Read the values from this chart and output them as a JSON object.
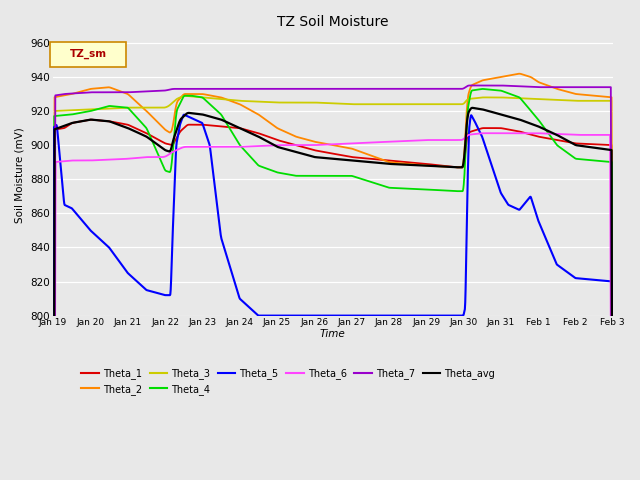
{
  "title": "TZ Soil Moisture",
  "xlabel": "Time",
  "ylabel": "Soil Moisture (mV)",
  "ylim": [
    800,
    965
  ],
  "yticks": [
    800,
    820,
    840,
    860,
    880,
    900,
    920,
    940,
    960
  ],
  "bg_color": "#e8e8e8",
  "legend_label": "TZ_sm",
  "series_colors": {
    "Theta_1": "#dd0000",
    "Theta_2": "#ff8800",
    "Theta_3": "#cccc00",
    "Theta_4": "#00dd00",
    "Theta_5": "#0000ff",
    "Theta_6": "#ff44ff",
    "Theta_7": "#9900cc",
    "Theta_avg": "#000000"
  },
  "tick_labels": [
    "Jan 19",
    "Jan 20",
    "Jan 21",
    "Jan 22",
    "Jan 23",
    "Jan 24",
    "Jan 25",
    "Jan 26",
    "Jan 27",
    "Jan 28",
    "Jan 29",
    "Jan 30",
    "Jan 31",
    "Feb 1",
    "Feb 2",
    "Feb 3"
  ]
}
